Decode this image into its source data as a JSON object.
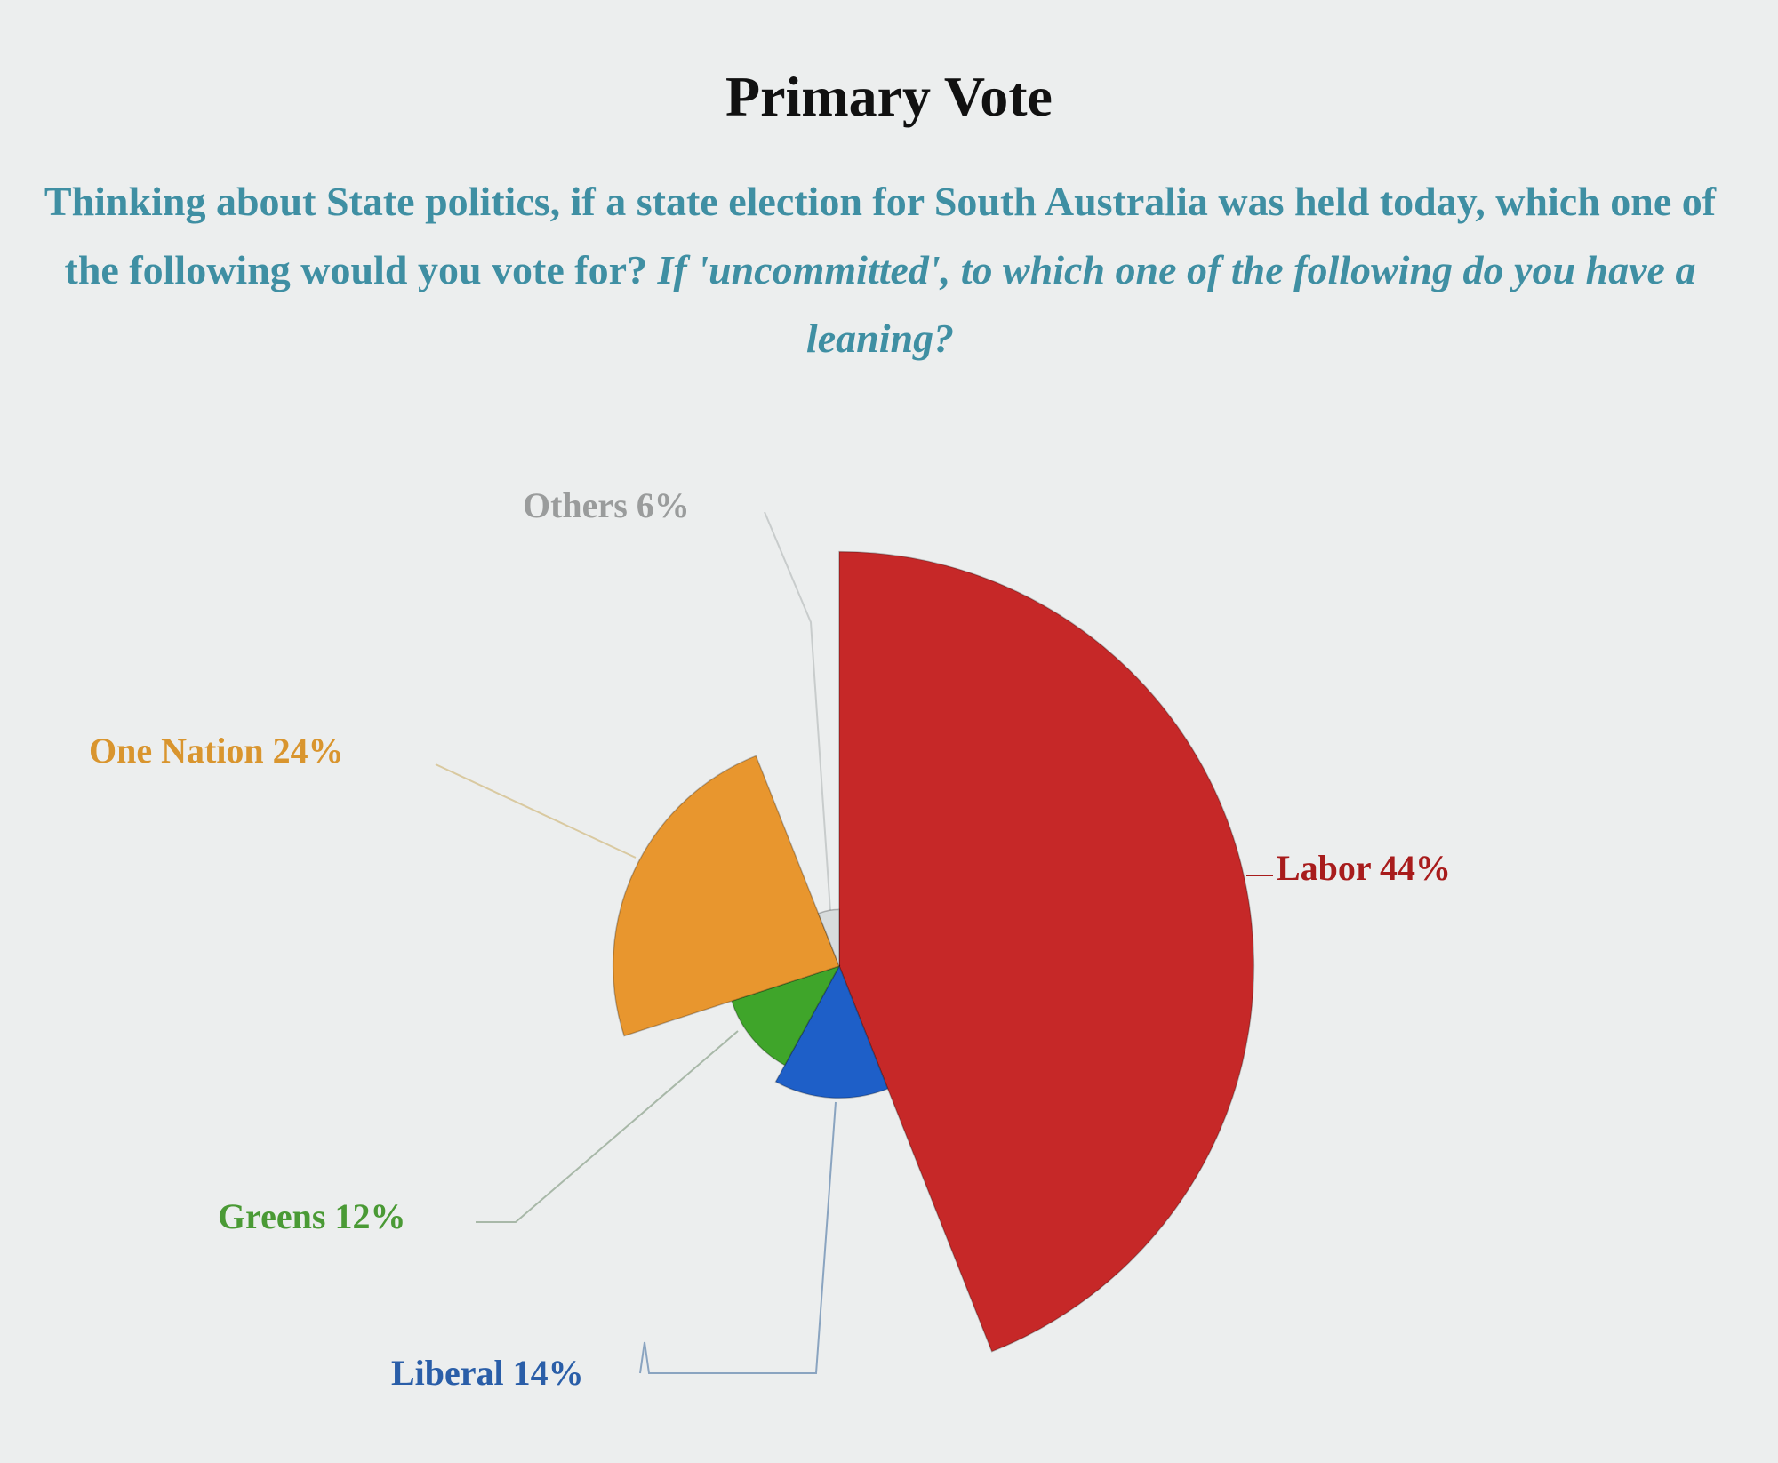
{
  "chart_data": {
    "type": "pie",
    "variant": "variable-radius (radius proportional to value)",
    "title": "Primary Vote",
    "subtitle": "Thinking about State politics, if a state election for South Australia was held today, which one of the following would you vote for?",
    "subtitle_italic": "If 'uncommitted', to which one of the following do you have a leaning?",
    "unit": "%",
    "slices": [
      {
        "name": "Labor",
        "value": 44,
        "label": "Labor 44%",
        "color": "#c62828",
        "label_color": "#a81c1c"
      },
      {
        "name": "Liberal",
        "value": 14,
        "label": "Liberal 14%",
        "color": "#1e5fc8",
        "label_color": "#2a5ea8"
      },
      {
        "name": "Greens",
        "value": 12,
        "label": "Greens 12%",
        "color": "#3fa52a",
        "label_color": "#4a9a35"
      },
      {
        "name": "One Nation",
        "value": 24,
        "label": "One Nation 24%",
        "color": "#e8962e",
        "label_color": "#d9952e"
      },
      {
        "name": "Others",
        "value": 6,
        "label": "Others 6%",
        "color": "#d8dcdc",
        "label_color": "#9a9c9c"
      }
    ],
    "start_angle": "12 o'clock, clockwise"
  }
}
